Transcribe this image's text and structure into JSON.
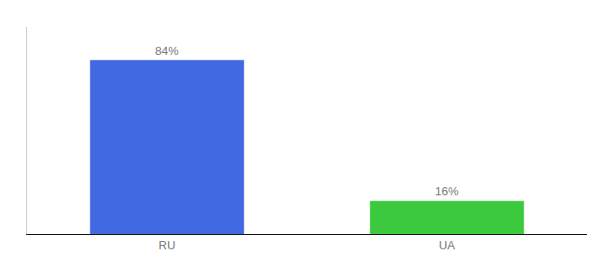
{
  "chart_data": {
    "type": "bar",
    "categories": [
      "RU",
      "UA"
    ],
    "values": [
      84,
      16
    ],
    "value_labels": [
      "84%",
      "16%"
    ],
    "data_labels": true,
    "colors": [
      "#4169e1",
      "#3dc93d"
    ],
    "ylim": [
      0,
      100
    ],
    "grid": false,
    "tick_labels": "x"
  }
}
